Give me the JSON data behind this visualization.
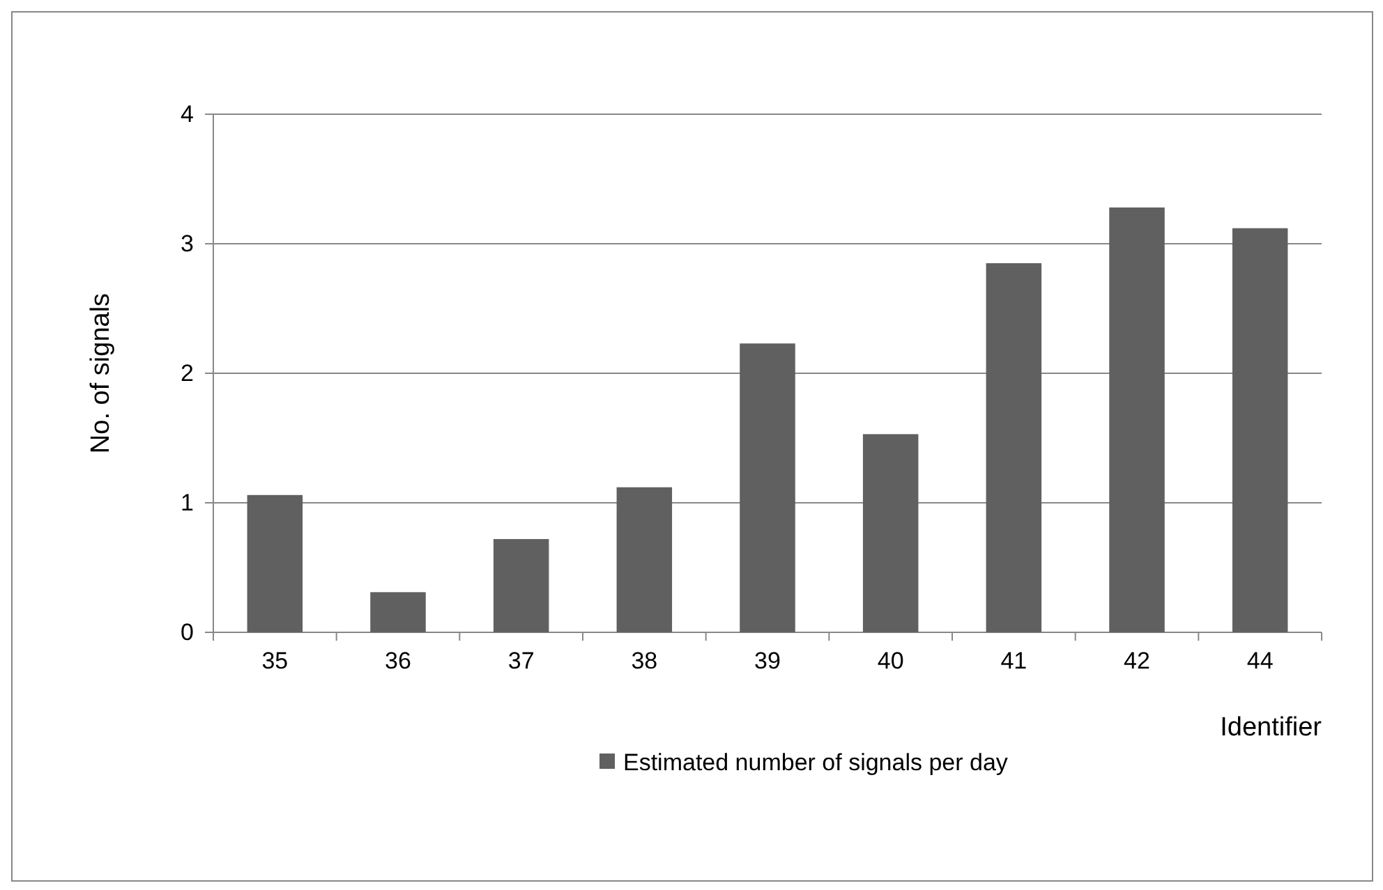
{
  "chart_data": {
    "type": "bar",
    "xlabel": "Identifier",
    "ylabel": "No. of signals",
    "categories": [
      "35",
      "36",
      "37",
      "38",
      "39",
      "40",
      "41",
      "42",
      "44"
    ],
    "series": [
      {
        "name": "Estimated number of signals per day",
        "color": "#606060",
        "values": [
          1.06,
          0.31,
          0.72,
          1.12,
          2.23,
          1.53,
          2.85,
          3.28,
          3.12
        ]
      }
    ],
    "ylim": [
      0,
      4
    ],
    "yticks": [
      0,
      1,
      2,
      3,
      4
    ],
    "grid": "y",
    "legend": "bottom"
  }
}
